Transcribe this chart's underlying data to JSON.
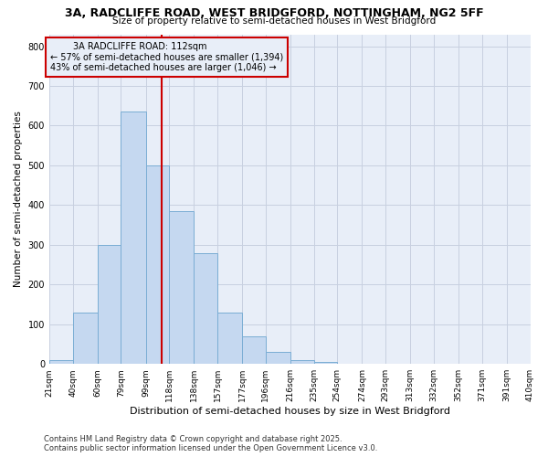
{
  "title1": "3A, RADCLIFFE ROAD, WEST BRIDGFORD, NOTTINGHAM, NG2 5FF",
  "title2": "Size of property relative to semi-detached houses in West Bridgford",
  "xlabel": "Distribution of semi-detached houses by size in West Bridgford",
  "ylabel": "Number of semi-detached properties",
  "annotation_title": "3A RADCLIFFE ROAD: 112sqm",
  "annotation_line1": "← 57% of semi-detached houses are smaller (1,394)",
  "annotation_line2": "43% of semi-detached houses are larger (1,046) →",
  "footnote1": "Contains HM Land Registry data © Crown copyright and database right 2025.",
  "footnote2": "Contains public sector information licensed under the Open Government Licence v3.0.",
  "property_size": 112,
  "bar_edges": [
    21,
    40,
    60,
    79,
    99,
    118,
    138,
    157,
    177,
    196,
    216,
    235,
    254,
    274,
    293,
    313,
    332,
    352,
    371,
    391,
    410
  ],
  "bar_heights": [
    10,
    130,
    300,
    635,
    500,
    385,
    280,
    130,
    70,
    30,
    10,
    5,
    0,
    0,
    0,
    0,
    0,
    0,
    0,
    0
  ],
  "bar_color": "#c5d8f0",
  "bar_edge_color": "#7aadd4",
  "vline_color": "#cc0000",
  "box_edge_color": "#cc0000",
  "grid_color": "#c8d0e0",
  "background_color": "#ffffff",
  "plot_bg_color": "#e8eef8",
  "ylim": [
    0,
    830
  ],
  "yticks": [
    0,
    100,
    200,
    300,
    400,
    500,
    600,
    700,
    800
  ]
}
